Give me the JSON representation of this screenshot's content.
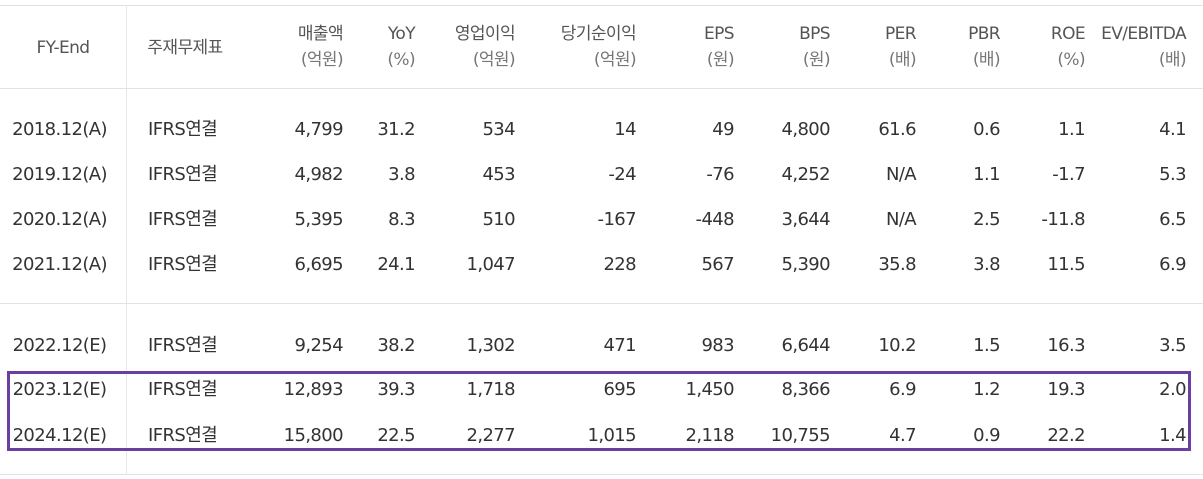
{
  "header": {
    "fy_end": "FY-End",
    "basis": "주재무제표",
    "cols": [
      {
        "label": "매출액",
        "unit": "(억원)"
      },
      {
        "label": "YoY",
        "unit": "(%)"
      },
      {
        "label": "영업이익",
        "unit": "(억원)"
      },
      {
        "label": "당기순이익",
        "unit": "(억원)"
      },
      {
        "label": "EPS",
        "unit": "(원)"
      },
      {
        "label": "BPS",
        "unit": "(원)"
      },
      {
        "label": "PER",
        "unit": "(배)"
      },
      {
        "label": "PBR",
        "unit": "(배)"
      },
      {
        "label": "ROE",
        "unit": "(%)"
      },
      {
        "label": "EV/EBITDA",
        "unit": "(배)"
      }
    ]
  },
  "rows": [
    {
      "fy": "2018.12(A)",
      "basis": "IFRS연결",
      "v": [
        "4,799",
        "31.2",
        "534",
        "14",
        "49",
        "4,800",
        "61.6",
        "0.6",
        "1.1",
        "4.1"
      ]
    },
    {
      "fy": "2019.12(A)",
      "basis": "IFRS연결",
      "v": [
        "4,982",
        "3.8",
        "453",
        "-24",
        "-76",
        "4,252",
        "N/A",
        "1.1",
        "-1.7",
        "5.3"
      ]
    },
    {
      "fy": "2020.12(A)",
      "basis": "IFRS연결",
      "v": [
        "5,395",
        "8.3",
        "510",
        "-167",
        "-448",
        "3,644",
        "N/A",
        "2.5",
        "-11.8",
        "6.5"
      ]
    },
    {
      "fy": "2021.12(A)",
      "basis": "IFRS연결",
      "v": [
        "6,695",
        "24.1",
        "1,047",
        "228",
        "567",
        "5,390",
        "35.8",
        "3.8",
        "11.5",
        "6.9"
      ]
    },
    {
      "fy": "2022.12(E)",
      "basis": "IFRS연결",
      "v": [
        "9,254",
        "38.2",
        "1,302",
        "471",
        "983",
        "6,644",
        "10.2",
        "1.5",
        "16.3",
        "3.5"
      ]
    },
    {
      "fy": "2023.12(E)",
      "basis": "IFRS연결",
      "v": [
        "12,893",
        "39.3",
        "1,718",
        "695",
        "1,450",
        "8,366",
        "6.9",
        "1.2",
        "19.3",
        "2.0"
      ]
    },
    {
      "fy": "2024.12(E)",
      "basis": "IFRS연결",
      "v": [
        "15,800",
        "22.5",
        "2,277",
        "1,015",
        "2,118",
        "10,755",
        "4.7",
        "0.9",
        "22.2",
        "1.4"
      ]
    }
  ],
  "highlight_color": "#6b3fa0"
}
